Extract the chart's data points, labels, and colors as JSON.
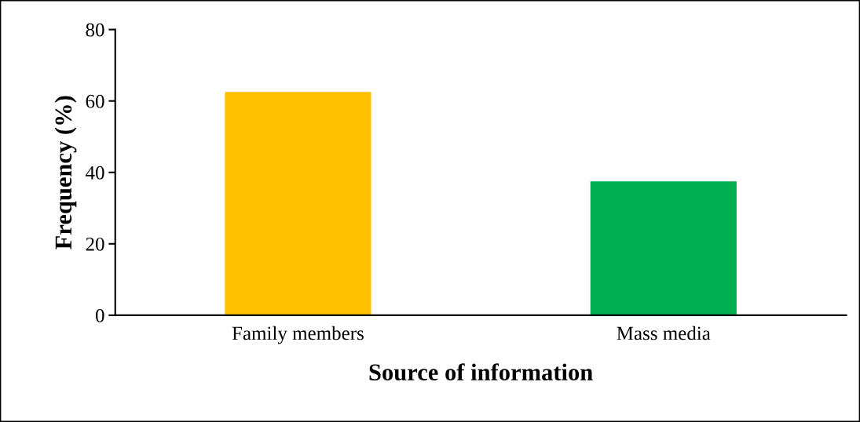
{
  "chart_data": {
    "type": "bar",
    "xlabel": "Source of information",
    "ylabel": "Frequency (%)",
    "categories": [
      "Family members",
      "Mass media"
    ],
    "values": [
      62.5,
      37.5
    ],
    "colors": [
      "#ffc000",
      "#00b050"
    ],
    "ylim": [
      0,
      80
    ],
    "yticks": [
      0,
      20,
      40,
      60,
      80
    ],
    "grid": false,
    "legend": false
  }
}
